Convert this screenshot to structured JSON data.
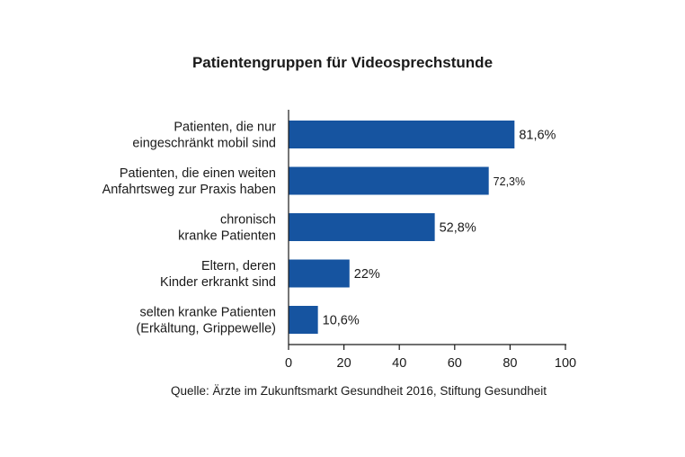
{
  "chart_data": {
    "type": "bar",
    "orientation": "horizontal",
    "title": "Patientengruppen für Videosprechstunde",
    "categories": [
      [
        "Patienten, die nur",
        "eingeschränkt mobil sind"
      ],
      [
        "Patienten, die einen weiten",
        "Anfahrtsweg zur Praxis haben"
      ],
      [
        "chronisch",
        "kranke Patienten"
      ],
      [
        "Eltern, deren",
        "Kinder erkrankt sind"
      ],
      [
        "selten kranke Patienten",
        "(Erkältung, Grippewelle)"
      ]
    ],
    "values": [
      81.6,
      72.3,
      52.8,
      22,
      10.6
    ],
    "value_labels": [
      "81,6%",
      "72,3%",
      "52,8%",
      "22%",
      "10,6%"
    ],
    "xlim": [
      0,
      100
    ],
    "xticks": [
      0,
      20,
      40,
      60,
      80,
      100
    ],
    "grid": false,
    "bar_color": "#1654a0"
  },
  "source": "Quelle: Ärzte im Zukunftsmarkt Gesundheit 2016, Stiftung Gesundheit"
}
